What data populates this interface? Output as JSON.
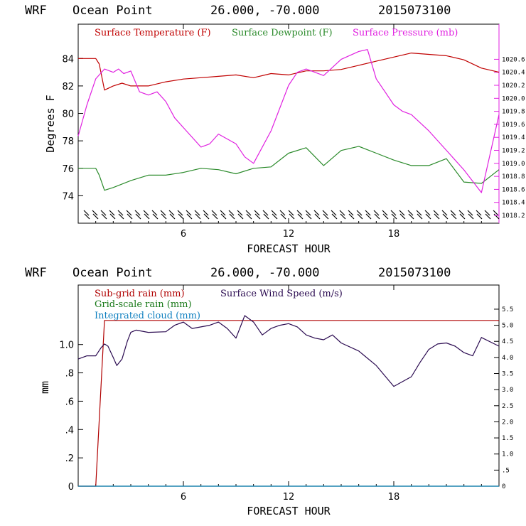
{
  "colors": {
    "temperature": "#c00000",
    "dewpoint": "#2a8a2a",
    "pressure": "#e020e0",
    "subgrid": "#b00000",
    "gridscale": "#1a7a1a",
    "cloud": "#1080c0",
    "wind": "#2a0a50",
    "axis": "#000000"
  },
  "chart_data": [
    {
      "type": "line",
      "header": {
        "model": "WRF",
        "location": "Ocean Point",
        "coords": "26.000, -70.000",
        "init": "2015073100"
      },
      "xlabel": "FORECAST HOUR",
      "ylabel": "Degrees F",
      "xlim": [
        0,
        24
      ],
      "x_ticks": [
        "6",
        "12",
        "18"
      ],
      "ylim_left": [
        72,
        86.5
      ],
      "y_ticks_left": [
        "74",
        "76",
        "78",
        "80",
        "82",
        "84"
      ],
      "ylim_right": [
        1018.08,
        1021.14
      ],
      "y_ticks_right": [
        "1018.2",
        "1018.4",
        "1018.6",
        "1018.8",
        "1019.0",
        "1019.2",
        "1019.4",
        "1019.6",
        "1019.8",
        "1020.0",
        "1020.2",
        "1020.4",
        "1020.6"
      ],
      "legend": [
        "Surface Temperature (F)",
        "Surface Dewpoint (F)",
        "Surface Pressure (mb)"
      ],
      "series": [
        {
          "name": "Surface Temperature (F)",
          "axis": "left",
          "x": [
            0,
            1,
            1.2,
            1.5,
            2,
            2.5,
            3,
            4,
            5,
            6,
            7,
            8,
            9,
            10,
            11,
            12,
            13,
            14,
            15,
            16,
            17,
            18,
            19,
            20,
            21,
            22,
            23,
            24
          ],
          "values": [
            84.0,
            84.0,
            83.6,
            81.7,
            82.0,
            82.2,
            82.0,
            82.0,
            82.3,
            82.5,
            82.6,
            82.7,
            82.8,
            82.6,
            82.9,
            82.8,
            83.1,
            83.1,
            83.2,
            83.5,
            83.8,
            84.1,
            84.4,
            84.3,
            84.2,
            83.9,
            83.3,
            83.0
          ]
        },
        {
          "name": "Surface Dewpoint (F)",
          "axis": "left",
          "x": [
            0,
            1,
            1.2,
            1.5,
            2,
            3,
            4,
            5,
            6,
            7,
            8,
            9,
            10,
            11,
            12,
            13,
            14,
            15,
            16,
            17,
            18,
            19,
            20,
            21,
            22,
            23,
            24
          ],
          "values": [
            76.0,
            76.0,
            75.5,
            74.4,
            74.6,
            75.1,
            75.5,
            75.5,
            75.7,
            76.0,
            75.9,
            75.6,
            76.0,
            76.1,
            77.1,
            77.5,
            76.2,
            77.3,
            77.6,
            77.1,
            76.6,
            76.2,
            76.2,
            76.7,
            75.0,
            74.9,
            75.9
          ]
        },
        {
          "name": "Surface Pressure (mb)",
          "axis": "right",
          "x": [
            0,
            0.5,
            1,
            1.5,
            2,
            2.3,
            2.6,
            3,
            3.5,
            4,
            4.5,
            5,
            5.5,
            6,
            7,
            7.5,
            8,
            9,
            9.5,
            10,
            11,
            12,
            12.5,
            13,
            14,
            15,
            16,
            16.5,
            17,
            17.5,
            18,
            18.5,
            19,
            20,
            21,
            22,
            23,
            24
          ],
          "values": [
            1019.42,
            1019.9,
            1020.3,
            1020.45,
            1020.4,
            1020.45,
            1020.38,
            1020.42,
            1020.1,
            1020.05,
            1020.1,
            1019.95,
            1019.7,
            1019.55,
            1019.25,
            1019.3,
            1019.45,
            1019.3,
            1019.1,
            1019.0,
            1019.5,
            1020.2,
            1020.4,
            1020.45,
            1020.35,
            1020.6,
            1020.72,
            1020.75,
            1020.3,
            1020.1,
            1019.9,
            1019.8,
            1019.75,
            1019.5,
            1019.2,
            1018.9,
            1018.55,
            1019.75
          ]
        }
      ]
    },
    {
      "type": "line",
      "header": {
        "model": "WRF",
        "location": "Ocean Point",
        "coords": "26.000, -70.000",
        "init": "2015073100"
      },
      "xlabel": "FORECAST HOUR",
      "ylabel": "mm",
      "xlim": [
        0,
        24
      ],
      "x_ticks": [
        "6",
        "12",
        "18"
      ],
      "ylim_left": [
        0,
        1.42
      ],
      "y_ticks_left": [
        "0",
        ".2",
        ".4",
        ".6",
        ".8",
        "1.0"
      ],
      "ylim_right": [
        0,
        6.25
      ],
      "y_ticks_right": [
        "0",
        ".5",
        "1.0",
        "1.5",
        "2.0",
        "2.5",
        "3.0",
        "3.5",
        "4.0",
        "4.5",
        "5.0",
        "5.5"
      ],
      "legend": [
        "Sub-grid rain (mm)",
        "Grid-scale rain (mm)",
        "Integrated cloud (mm)",
        "Surface Wind Speed (m/s)"
      ],
      "series": [
        {
          "name": "Sub-grid rain (mm)",
          "axis": "left",
          "x": [
            0,
            1,
            1.5,
            24
          ],
          "values": [
            0,
            0,
            1.17,
            1.17
          ]
        },
        {
          "name": "Grid-scale rain (mm)",
          "axis": "left",
          "x": [
            0,
            24
          ],
          "values": [
            0,
            0
          ]
        },
        {
          "name": "Integrated cloud (mm)",
          "axis": "left",
          "x": [
            0,
            24
          ],
          "values": [
            0,
            0
          ]
        },
        {
          "name": "Surface Wind Speed (m/s)",
          "axis": "right",
          "x": [
            0,
            0.5,
            1,
            1.3,
            1.5,
            1.7,
            2,
            2.2,
            2.5,
            2.8,
            3,
            3.3,
            4,
            5,
            5.5,
            6,
            6.5,
            7,
            7.5,
            8,
            8.5,
            9,
            9.5,
            10,
            10.5,
            11,
            11.5,
            12,
            12.5,
            13,
            13.5,
            14,
            14.5,
            15,
            16,
            17,
            18,
            19,
            19.5,
            20,
            20.5,
            21,
            21.5,
            22,
            22.5,
            23,
            24
          ],
          "values": [
            3.95,
            4.05,
            4.05,
            4.3,
            4.42,
            4.35,
            4.0,
            3.75,
            3.95,
            4.5,
            4.78,
            4.85,
            4.78,
            4.8,
            5.0,
            5.1,
            4.9,
            4.95,
            5.0,
            5.1,
            4.9,
            4.6,
            5.3,
            5.1,
            4.7,
            4.9,
            5.0,
            5.05,
            4.95,
            4.7,
            4.6,
            4.55,
            4.7,
            4.45,
            4.2,
            3.75,
            3.1,
            3.4,
            3.85,
            4.25,
            4.42,
            4.45,
            4.35,
            4.15,
            4.05,
            4.62,
            4.35
          ]
        }
      ]
    }
  ]
}
